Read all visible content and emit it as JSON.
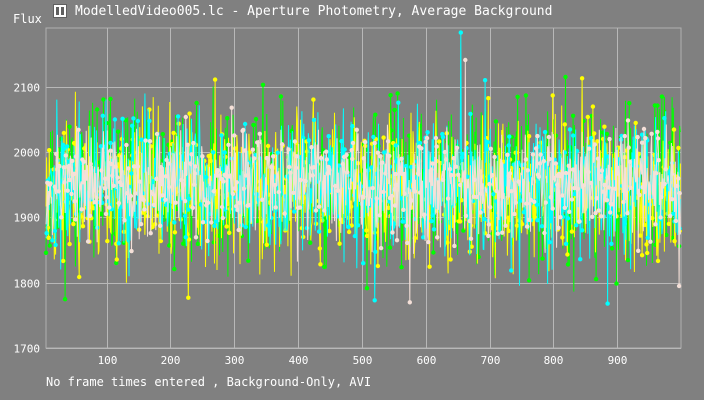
{
  "window": {
    "title": "ModelledVideo005.lc - Aperture Photometry, Average Background",
    "icon": "app-icon"
  },
  "footer": {
    "text": "No frame times entered , Background-Only, AVI"
  },
  "chart_data": {
    "type": "line",
    "ylabel": "Flux",
    "xlim": [
      5,
      1000
    ],
    "ylim": [
      1700,
      2190
    ],
    "x_ticks": [
      100,
      200,
      300,
      400,
      500,
      600,
      700,
      800,
      900
    ],
    "y_ticks": [
      1700,
      1800,
      1900,
      2000,
      2100
    ],
    "grid": true,
    "legend": "none",
    "num_points": 995,
    "series": [
      {
        "color": "#00ff00",
        "mean": 1950,
        "spread": 58,
        "seed": 11,
        "peaks": [
          [
            819,
            2115
          ],
          [
            345,
            2103
          ]
        ]
      },
      {
        "color": "#ffff00",
        "mean": 1945,
        "spread": 55,
        "seed": 23,
        "peaks": [
          [
            270,
            2111
          ],
          [
            845,
            2113
          ],
          [
            228,
            1777
          ]
        ]
      },
      {
        "color": "#00ffff",
        "mean": 1950,
        "spread": 52,
        "seed": 37,
        "peaks": [
          [
            655,
            2183
          ],
          [
            693,
            2110
          ],
          [
            885,
            1768
          ],
          [
            520,
            1773
          ]
        ]
      },
      {
        "color": "#f5e0d8",
        "mean": 1955,
        "spread": 42,
        "seed": 53,
        "peaks": [
          [
            662,
            2141
          ],
          [
            575,
            1770
          ],
          [
            997,
            1795
          ]
        ]
      }
    ]
  }
}
